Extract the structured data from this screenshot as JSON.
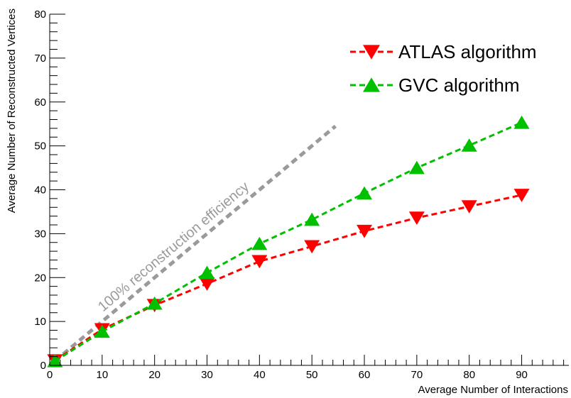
{
  "chart_data": {
    "type": "line",
    "xlabel": "Average Number of Interactions",
    "ylabel": "Average Number of Reconstructed Vertices",
    "xlim": [
      0,
      99
    ],
    "ylim": [
      0,
      80
    ],
    "x_major_ticks": [
      0,
      10,
      20,
      30,
      40,
      50,
      60,
      70,
      80,
      90
    ],
    "x_tick_labels": [
      "0",
      "10",
      "20",
      "30",
      "40",
      "50",
      "60",
      "70",
      "80",
      "90"
    ],
    "y_major_ticks": [
      0,
      10,
      20,
      30,
      40,
      50,
      60,
      70,
      80
    ],
    "y_tick_labels": [
      "0",
      "10",
      "20",
      "30",
      "40",
      "50",
      "60",
      "70",
      "80"
    ],
    "grid": false,
    "legend_position": "top-right",
    "series": [
      {
        "name": "ATLAS algorithm",
        "color": "#ff0000",
        "marker": "triangle-down",
        "line_style": "dashed",
        "x": [
          1,
          10,
          20,
          30,
          40,
          50,
          60,
          70,
          80,
          90
        ],
        "y": [
          1.1,
          8.2,
          13.7,
          18.6,
          23.7,
          27.1,
          30.6,
          33.6,
          36.2,
          38.8
        ]
      },
      {
        "name": "GVC algorithm",
        "color": "#00c000",
        "marker": "triangle-up",
        "line_style": "dashed",
        "x": [
          1,
          10,
          20,
          30,
          40,
          50,
          60,
          70,
          80,
          90
        ],
        "y": [
          1.0,
          7.7,
          14.1,
          21.1,
          27.7,
          33.2,
          39.2,
          45.0,
          50.1,
          55.3
        ]
      }
    ],
    "reference_line": {
      "label": "100% reconstruction efficiency",
      "color": "#9a9a9a",
      "line_style": "dashed",
      "x": [
        1,
        54.5
      ],
      "y": [
        1,
        54.5
      ]
    }
  }
}
